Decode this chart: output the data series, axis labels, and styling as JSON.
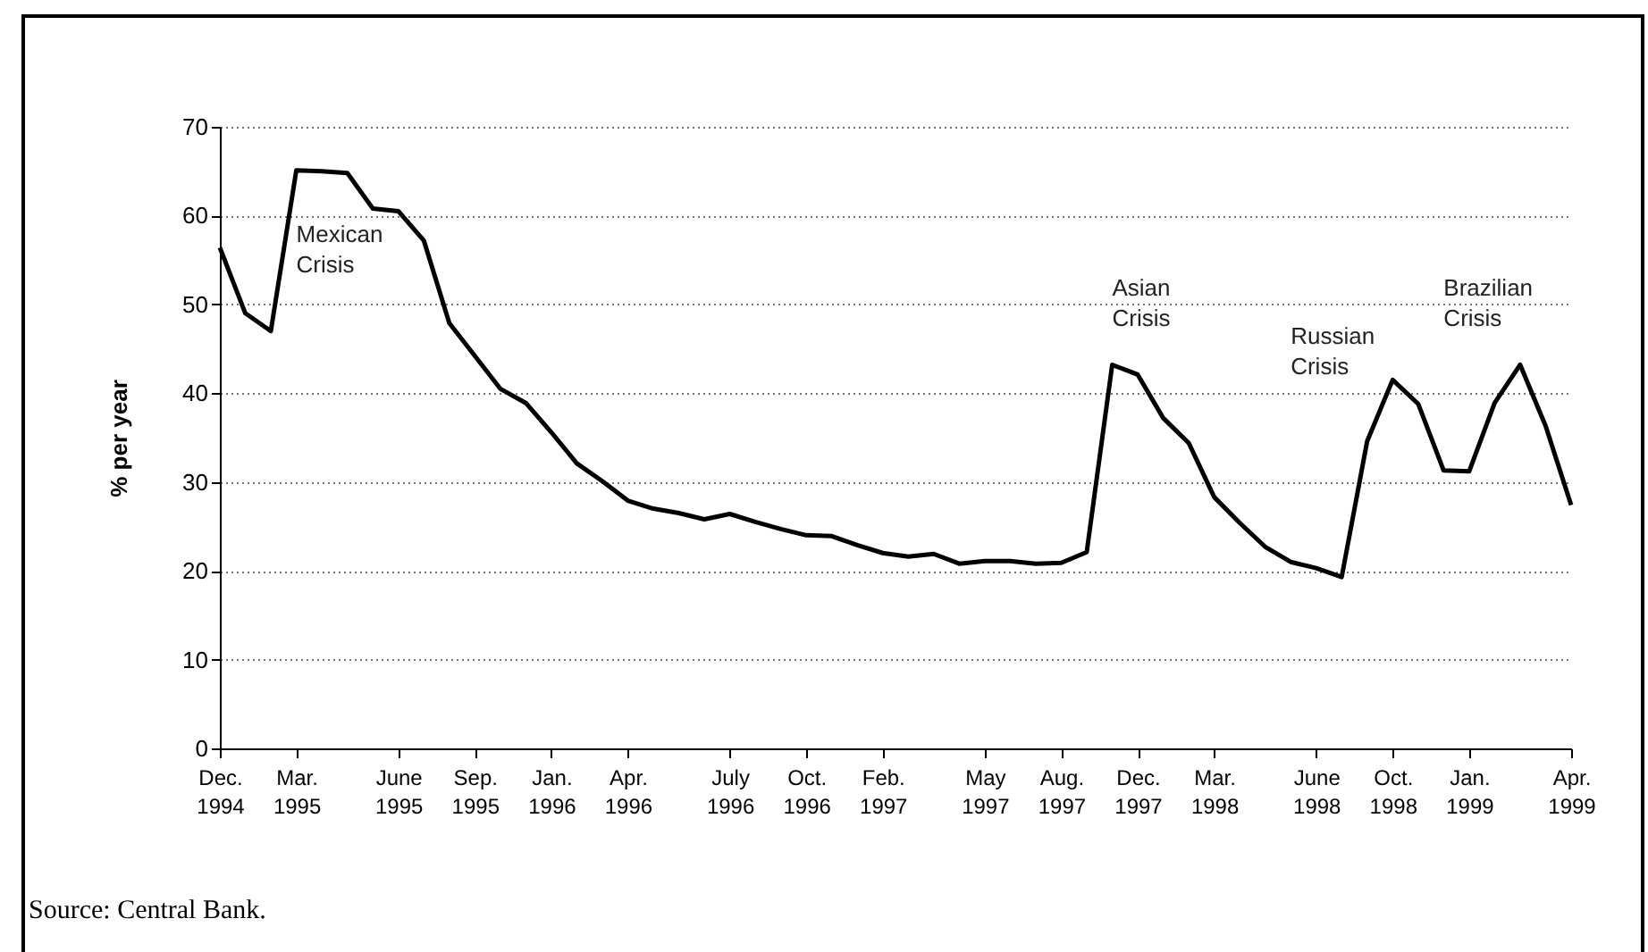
{
  "chart_data": {
    "type": "line",
    "ylabel": "% per year",
    "categories": [
      "Dec.\n1994",
      null,
      null,
      "Mar.\n1995",
      null,
      null,
      null,
      "June\n1995",
      null,
      null,
      "Sep.\n1995",
      null,
      null,
      "Jan.\n1996",
      null,
      null,
      "Apr.\n1996",
      null,
      null,
      null,
      "July\n1996",
      null,
      null,
      "Oct.\n1996",
      null,
      null,
      "Feb.\n1997",
      null,
      null,
      null,
      "May\n1997",
      null,
      null,
      "Aug.\n1997",
      null,
      null,
      "Dec.\n1997",
      null,
      null,
      "Mar.\n1998",
      null,
      null,
      null,
      "June\n1998",
      null,
      null,
      "Oct.\n1998",
      null,
      null,
      "Jan.\n1999",
      null,
      null,
      null,
      "Apr.\n1999"
    ],
    "series": [
      {
        "color": "#000000",
        "values": [
          56.4,
          49.0,
          47.0,
          65.1,
          65.0,
          64.8,
          60.8,
          60.5,
          57.2,
          47.9,
          44.2,
          40.5,
          38.9,
          35.6,
          32.1,
          30.1,
          27.9,
          27.0,
          26.5,
          25.8,
          26.4,
          25.5,
          24.7,
          24.0,
          23.9,
          22.9,
          22.0,
          21.6,
          21.9,
          20.8,
          21.1,
          21.1,
          20.8,
          20.9,
          22.1,
          43.2,
          42.1,
          37.2,
          34.4,
          28.3,
          25.4,
          22.7,
          21.0,
          20.3,
          19.3,
          34.6,
          41.5,
          38.8,
          31.3,
          31.2,
          38.9,
          43.2,
          36.3,
          27.4
        ]
      }
    ],
    "ylim": [
      0,
      70
    ],
    "yticks": [
      0,
      10,
      20,
      30,
      40,
      50,
      60,
      70
    ],
    "grid": "y",
    "line_style": "solid",
    "annotations": [
      "Mexican Crisis",
      "Asian Crisis",
      "Russian Crisis",
      "Brazilian Crisis",
      "Source: Central Bank."
    ]
  }
}
